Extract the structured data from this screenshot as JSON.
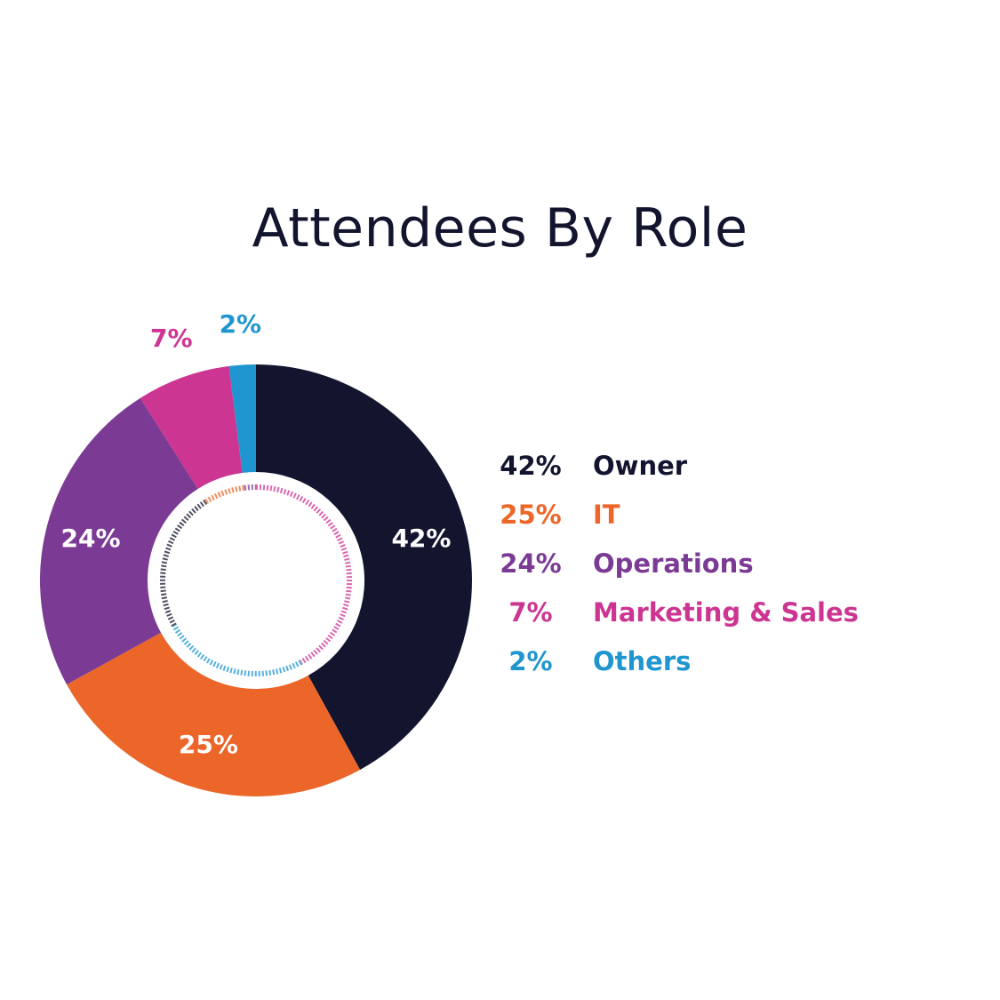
{
  "chart_data": {
    "type": "pie",
    "title": "Attendees By Role",
    "categories": [
      "Owner",
      "IT",
      "Operations",
      "Marketing & Sales",
      "Others"
    ],
    "values": [
      42,
      25,
      24,
      7,
      2
    ],
    "value_labels": [
      "42%",
      "25%",
      "24%",
      "7%",
      "2%"
    ],
    "colors": [
      "#13152f",
      "#ec6629",
      "#7b3b94",
      "#cc3591",
      "#1f96cf"
    ],
    "donut": true,
    "legend_position": "right"
  }
}
